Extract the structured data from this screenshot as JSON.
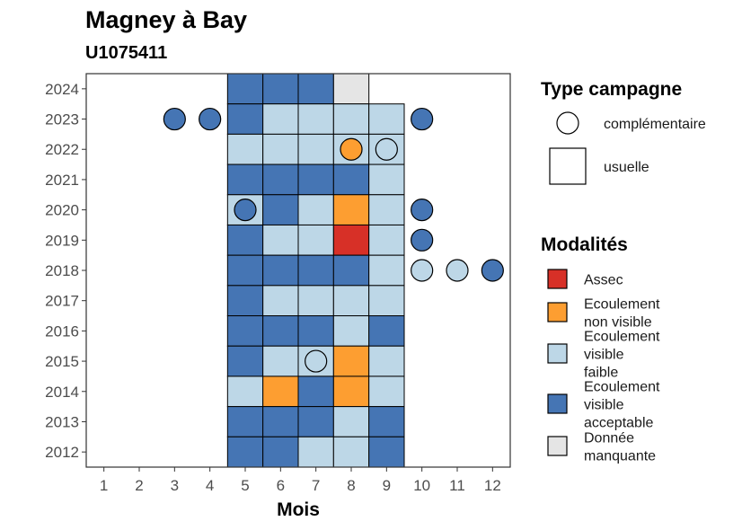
{
  "chart_data": {
    "type": "heatmap",
    "title": "Magney à Bay",
    "subtitle": "U1075411",
    "xlabel": "Mois",
    "ylabel": "",
    "x_ticks": [
      1,
      2,
      3,
      4,
      5,
      6,
      7,
      8,
      9,
      10,
      11,
      12
    ],
    "y_ticks": [
      2012,
      2013,
      2014,
      2015,
      2016,
      2017,
      2018,
      2019,
      2020,
      2021,
      2022,
      2023,
      2024
    ],
    "xlim": [
      0.5,
      12.5
    ],
    "ylim": [
      2011.5,
      2024.5
    ],
    "grid": false,
    "colors": {
      "assec": "#d73027",
      "ecoulement_non_visible": "#fd9e31",
      "ecoulement_visible_faible": "#bdd7e7",
      "ecoulement_visible_acceptable": "#4575b4",
      "donnee_manquante": "#e5e5e5"
    },
    "legend_type": {
      "title": "Type campagne",
      "placement": "right-top",
      "items": [
        {
          "label": "complémentaire",
          "shape": "circle"
        },
        {
          "label": "usuelle",
          "shape": "square"
        }
      ]
    },
    "legend_modalites": {
      "title": "Modalités",
      "placement": "right-bottom",
      "items": [
        {
          "key": "assec",
          "lines": [
            "Assec"
          ]
        },
        {
          "key": "ecoulement_non_visible",
          "lines": [
            "Ecoulement",
            "non visible"
          ]
        },
        {
          "key": "ecoulement_visible_faible",
          "lines": [
            "Ecoulement",
            "visible",
            "faible"
          ]
        },
        {
          "key": "ecoulement_visible_acceptable",
          "lines": [
            "Ecoulement",
            "visible",
            "acceptable"
          ]
        },
        {
          "key": "donnee_manquante",
          "lines": [
            "Donnée",
            "manquante"
          ]
        }
      ]
    },
    "usuelle": [
      {
        "year": 2024,
        "month": 5,
        "value": "ecoulement_visible_acceptable"
      },
      {
        "year": 2024,
        "month": 6,
        "value": "ecoulement_visible_acceptable"
      },
      {
        "year": 2024,
        "month": 7,
        "value": "ecoulement_visible_acceptable"
      },
      {
        "year": 2024,
        "month": 8,
        "value": "donnee_manquante"
      },
      {
        "year": 2023,
        "month": 5,
        "value": "ecoulement_visible_acceptable"
      },
      {
        "year": 2023,
        "month": 6,
        "value": "ecoulement_visible_faible"
      },
      {
        "year": 2023,
        "month": 7,
        "value": "ecoulement_visible_faible"
      },
      {
        "year": 2023,
        "month": 8,
        "value": "ecoulement_visible_faible"
      },
      {
        "year": 2023,
        "month": 9,
        "value": "ecoulement_visible_faible"
      },
      {
        "year": 2022,
        "month": 5,
        "value": "ecoulement_visible_faible"
      },
      {
        "year": 2022,
        "month": 6,
        "value": "ecoulement_visible_faible"
      },
      {
        "year": 2022,
        "month": 7,
        "value": "ecoulement_visible_faible"
      },
      {
        "year": 2022,
        "month": 8,
        "value": "ecoulement_visible_faible"
      },
      {
        "year": 2022,
        "month": 9,
        "value": "ecoulement_visible_faible"
      },
      {
        "year": 2021,
        "month": 5,
        "value": "ecoulement_visible_acceptable"
      },
      {
        "year": 2021,
        "month": 6,
        "value": "ecoulement_visible_acceptable"
      },
      {
        "year": 2021,
        "month": 7,
        "value": "ecoulement_visible_acceptable"
      },
      {
        "year": 2021,
        "month": 8,
        "value": "ecoulement_visible_acceptable"
      },
      {
        "year": 2021,
        "month": 9,
        "value": "ecoulement_visible_faible"
      },
      {
        "year": 2020,
        "month": 5,
        "value": "ecoulement_visible_faible"
      },
      {
        "year": 2020,
        "month": 6,
        "value": "ecoulement_visible_acceptable"
      },
      {
        "year": 2020,
        "month": 7,
        "value": "ecoulement_visible_faible"
      },
      {
        "year": 2020,
        "month": 8,
        "value": "ecoulement_non_visible"
      },
      {
        "year": 2020,
        "month": 9,
        "value": "ecoulement_visible_faible"
      },
      {
        "year": 2019,
        "month": 5,
        "value": "ecoulement_visible_acceptable"
      },
      {
        "year": 2019,
        "month": 6,
        "value": "ecoulement_visible_faible"
      },
      {
        "year": 2019,
        "month": 7,
        "value": "ecoulement_visible_faible"
      },
      {
        "year": 2019,
        "month": 8,
        "value": "assec"
      },
      {
        "year": 2019,
        "month": 9,
        "value": "ecoulement_visible_faible"
      },
      {
        "year": 2018,
        "month": 5,
        "value": "ecoulement_visible_acceptable"
      },
      {
        "year": 2018,
        "month": 6,
        "value": "ecoulement_visible_acceptable"
      },
      {
        "year": 2018,
        "month": 7,
        "value": "ecoulement_visible_acceptable"
      },
      {
        "year": 2018,
        "month": 8,
        "value": "ecoulement_visible_acceptable"
      },
      {
        "year": 2018,
        "month": 9,
        "value": "ecoulement_visible_faible"
      },
      {
        "year": 2017,
        "month": 5,
        "value": "ecoulement_visible_acceptable"
      },
      {
        "year": 2017,
        "month": 6,
        "value": "ecoulement_visible_faible"
      },
      {
        "year": 2017,
        "month": 7,
        "value": "ecoulement_visible_faible"
      },
      {
        "year": 2017,
        "month": 8,
        "value": "ecoulement_visible_faible"
      },
      {
        "year": 2017,
        "month": 9,
        "value": "ecoulement_visible_faible"
      },
      {
        "year": 2016,
        "month": 5,
        "value": "ecoulement_visible_acceptable"
      },
      {
        "year": 2016,
        "month": 6,
        "value": "ecoulement_visible_acceptable"
      },
      {
        "year": 2016,
        "month": 7,
        "value": "ecoulement_visible_acceptable"
      },
      {
        "year": 2016,
        "month": 8,
        "value": "ecoulement_visible_faible"
      },
      {
        "year": 2016,
        "month": 9,
        "value": "ecoulement_visible_acceptable"
      },
      {
        "year": 2015,
        "month": 5,
        "value": "ecoulement_visible_acceptable"
      },
      {
        "year": 2015,
        "month": 6,
        "value": "ecoulement_visible_faible"
      },
      {
        "year": 2015,
        "month": 7,
        "value": "ecoulement_visible_faible"
      },
      {
        "year": 2015,
        "month": 8,
        "value": "ecoulement_non_visible"
      },
      {
        "year": 2015,
        "month": 9,
        "value": "ecoulement_visible_faible"
      },
      {
        "year": 2014,
        "month": 5,
        "value": "ecoulement_visible_faible"
      },
      {
        "year": 2014,
        "month": 6,
        "value": "ecoulement_non_visible"
      },
      {
        "year": 2014,
        "month": 7,
        "value": "ecoulement_visible_acceptable"
      },
      {
        "year": 2014,
        "month": 8,
        "value": "ecoulement_non_visible"
      },
      {
        "year": 2014,
        "month": 9,
        "value": "ecoulement_visible_faible"
      },
      {
        "year": 2013,
        "month": 5,
        "value": "ecoulement_visible_acceptable"
      },
      {
        "year": 2013,
        "month": 6,
        "value": "ecoulement_visible_acceptable"
      },
      {
        "year": 2013,
        "month": 7,
        "value": "ecoulement_visible_acceptable"
      },
      {
        "year": 2013,
        "month": 8,
        "value": "ecoulement_visible_faible"
      },
      {
        "year": 2013,
        "month": 9,
        "value": "ecoulement_visible_acceptable"
      },
      {
        "year": 2012,
        "month": 5,
        "value": "ecoulement_visible_acceptable"
      },
      {
        "year": 2012,
        "month": 6,
        "value": "ecoulement_visible_acceptable"
      },
      {
        "year": 2012,
        "month": 7,
        "value": "ecoulement_visible_faible"
      },
      {
        "year": 2012,
        "month": 8,
        "value": "ecoulement_visible_faible"
      },
      {
        "year": 2012,
        "month": 9,
        "value": "ecoulement_visible_acceptable"
      }
    ],
    "complementaire": [
      {
        "year": 2023,
        "month": 3,
        "value": "ecoulement_visible_acceptable"
      },
      {
        "year": 2023,
        "month": 4,
        "value": "ecoulement_visible_acceptable"
      },
      {
        "year": 2023,
        "month": 10,
        "value": "ecoulement_visible_acceptable"
      },
      {
        "year": 2022,
        "month": 8,
        "value": "ecoulement_non_visible"
      },
      {
        "year": 2022,
        "month": 9,
        "value": "ecoulement_visible_faible"
      },
      {
        "year": 2020,
        "month": 5,
        "value": "ecoulement_visible_acceptable"
      },
      {
        "year": 2020,
        "month": 10,
        "value": "ecoulement_visible_acceptable"
      },
      {
        "year": 2019,
        "month": 10,
        "value": "ecoulement_visible_acceptable"
      },
      {
        "year": 2018,
        "month": 10,
        "value": "ecoulement_visible_faible"
      },
      {
        "year": 2018,
        "month": 11,
        "value": "ecoulement_visible_faible"
      },
      {
        "year": 2018,
        "month": 12,
        "value": "ecoulement_visible_acceptable"
      },
      {
        "year": 2015,
        "month": 7,
        "value": "ecoulement_visible_faible"
      }
    ]
  }
}
